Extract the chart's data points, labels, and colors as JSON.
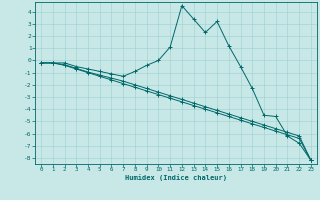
{
  "xlabel": "Humidex (Indice chaleur)",
  "bg_color": "#c8e8e8",
  "grid_color": "#9ecece",
  "line_color": "#006868",
  "xlim": [
    -0.5,
    23.5
  ],
  "ylim": [
    -8.5,
    4.8
  ],
  "xticks": [
    0,
    1,
    2,
    3,
    4,
    5,
    6,
    7,
    8,
    9,
    10,
    11,
    12,
    13,
    14,
    15,
    16,
    17,
    18,
    19,
    20,
    21,
    22,
    23
  ],
  "yticks": [
    -8,
    -7,
    -6,
    -5,
    -4,
    -3,
    -2,
    -1,
    0,
    1,
    2,
    3,
    4
  ],
  "series1_x": [
    0,
    1,
    2,
    3,
    4,
    5,
    6,
    7,
    8,
    9,
    10,
    11,
    12,
    13,
    14,
    15,
    16,
    17,
    18,
    19,
    20,
    21,
    22,
    23
  ],
  "series1_y": [
    -0.2,
    -0.2,
    -0.2,
    -0.5,
    -0.7,
    -0.9,
    -1.1,
    -1.3,
    -0.9,
    -0.4,
    0.0,
    1.1,
    4.5,
    3.4,
    2.3,
    3.2,
    1.2,
    -0.5,
    -2.3,
    -4.5,
    -4.6,
    -6.2,
    -6.8,
    -8.2
  ],
  "series2_x": [
    0,
    1,
    2,
    3,
    4,
    5,
    6,
    7,
    8,
    9,
    10,
    11,
    12,
    13,
    14,
    15,
    16,
    17,
    18,
    19,
    20,
    21,
    22,
    23
  ],
  "series2_y": [
    -0.2,
    -0.2,
    -0.4,
    -0.7,
    -1.0,
    -1.3,
    -1.6,
    -1.9,
    -2.2,
    -2.5,
    -2.8,
    -3.1,
    -3.4,
    -3.7,
    -4.0,
    -4.3,
    -4.6,
    -4.9,
    -5.2,
    -5.5,
    -5.8,
    -6.1,
    -6.4,
    -8.2
  ],
  "series3_x": [
    0,
    1,
    2,
    3,
    4,
    5,
    6,
    7,
    8,
    9,
    10,
    11,
    12,
    13,
    14,
    15,
    16,
    17,
    18,
    19,
    20,
    21,
    22,
    23
  ],
  "series3_y": [
    -0.2,
    -0.2,
    -0.35,
    -0.65,
    -0.95,
    -1.2,
    -1.45,
    -1.7,
    -2.0,
    -2.3,
    -2.6,
    -2.9,
    -3.2,
    -3.5,
    -3.8,
    -4.1,
    -4.4,
    -4.7,
    -5.0,
    -5.3,
    -5.6,
    -5.9,
    -6.2,
    -8.2
  ]
}
